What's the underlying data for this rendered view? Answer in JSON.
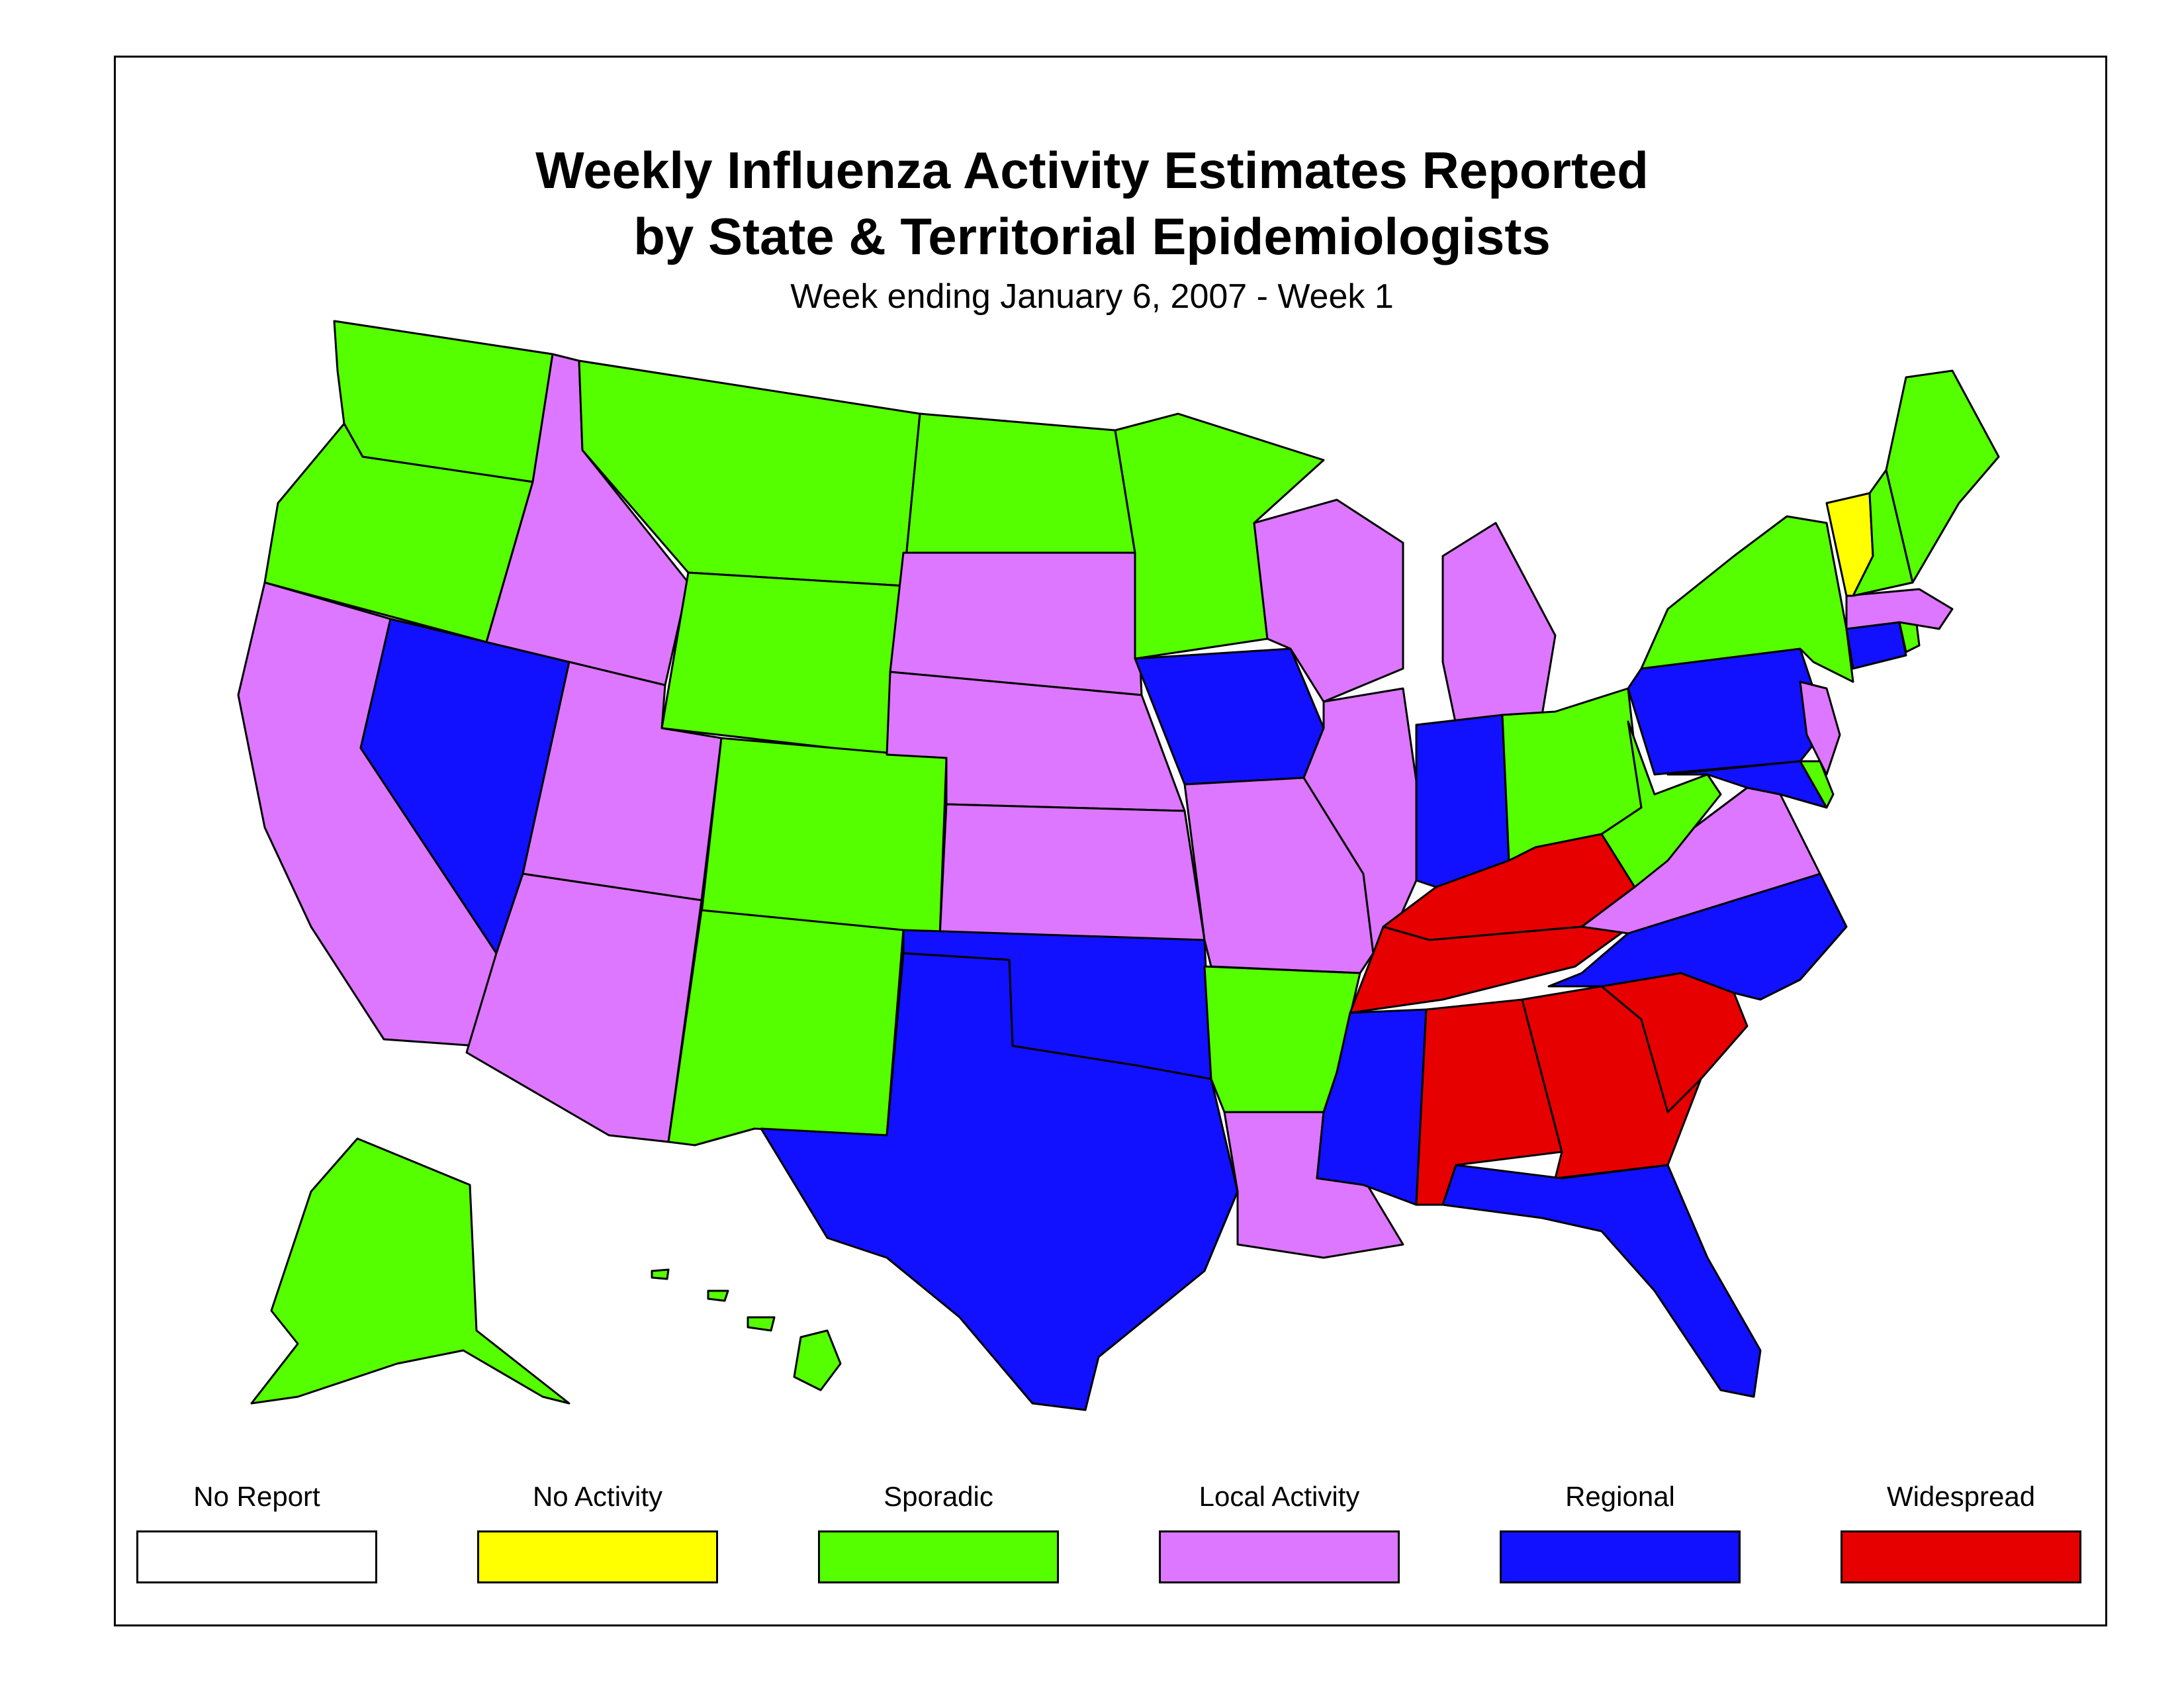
{
  "title_line1": "Weekly Influenza Activity Estimates Reported",
  "title_line2": "by State & Territorial Epidemiologists",
  "subtitle": "Week ending January 6, 2007 - Week 1",
  "legend": [
    {
      "label": "No Report",
      "color": "#ffffff"
    },
    {
      "label": "No Activity",
      "color": "#ffff00"
    },
    {
      "label": "Sporadic",
      "color": "#55ff00"
    },
    {
      "label": "Local Activity",
      "color": "#dd77ff"
    },
    {
      "label": "Regional",
      "color": "#1111ff"
    },
    {
      "label": "Widespread",
      "color": "#e60000"
    }
  ],
  "states": {
    "WA": "Sporadic",
    "OR": "Sporadic",
    "CA": "Local Activity",
    "NV": "Regional",
    "ID": "Local Activity",
    "MT": "Sporadic",
    "WY": "Sporadic",
    "UT": "Local Activity",
    "AZ": "Local Activity",
    "CO": "Sporadic",
    "NM": "Sporadic",
    "ND": "Sporadic",
    "SD": "Local Activity",
    "NE": "Local Activity",
    "KS": "Local Activity",
    "OK": "Regional",
    "TX": "Regional",
    "MN": "Sporadic",
    "IA": "Regional",
    "MO": "Local Activity",
    "AR": "Sporadic",
    "LA": "Local Activity",
    "WI": "Local Activity",
    "IL": "Local Activity",
    "MI": "Local Activity",
    "IN": "Regional",
    "OH": "Sporadic",
    "KY": "Widespread",
    "TN": "Widespread",
    "MS": "Regional",
    "AL": "Widespread",
    "GA": "Widespread",
    "FL": "Regional",
    "SC": "Widespread",
    "NC": "Regional",
    "VA": "Local Activity",
    "WV": "Sporadic",
    "PA": "Regional",
    "NY": "Sporadic",
    "VT": "No Activity",
    "NH": "Sporadic",
    "ME": "Sporadic",
    "MA": "Local Activity",
    "RI": "Sporadic",
    "CT": "Regional",
    "NJ": "Local Activity",
    "DE": "Sporadic",
    "MD": "Regional",
    "AK": "Sporadic",
    "HI": "Sporadic"
  }
}
